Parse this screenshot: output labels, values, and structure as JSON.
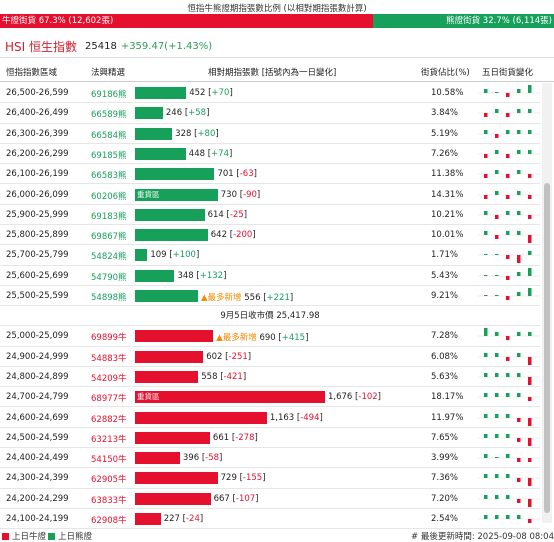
{
  "top_title": "恒指牛熊證期指張數比例 (以相對期指張數計算)",
  "ratio": {
    "bull_label": "牛證街貨 67.3% (12,602張)",
    "bear_label": "熊證街貨 32.7% (6,114張)",
    "bull_fraction": 0.673,
    "bull_color": "#e5102e",
    "bear_color": "#17a05a"
  },
  "index": {
    "name": "HSI 恒生指數",
    "value": "25418",
    "change": "+359.47(+1.43%)"
  },
  "columns": {
    "range": "恒指指數區域",
    "code": "法興精選",
    "qty": "相對期指張數 [括號內為一日變化]",
    "pct": "街貨佔比(%)",
    "spark": "五日街貨變化"
  },
  "heavy_label": "重貨區",
  "new_label": "最多新增",
  "bear_rows": [
    {
      "range": "26,500-26,599",
      "code": "69186熊",
      "qty": 452,
      "chg": "+70",
      "pct": "10.58%",
      "heavy": false,
      "new": false,
      "spark": [
        1,
        0,
        -1,
        1,
        2
      ]
    },
    {
      "range": "26,400-26,499",
      "code": "66589熊",
      "qty": 246,
      "chg": "+58",
      "pct": "3.84%",
      "heavy": false,
      "new": false,
      "spark": [
        -1,
        1,
        -1,
        1,
        1
      ]
    },
    {
      "range": "26,300-26,399",
      "code": "66584熊",
      "qty": 328,
      "chg": "+80",
      "pct": "5.19%",
      "heavy": false,
      "new": false,
      "spark": [
        1,
        -1,
        1,
        1,
        1
      ]
    },
    {
      "range": "26,200-26,299",
      "code": "69185熊",
      "qty": 448,
      "chg": "+74",
      "pct": "7.26%",
      "heavy": false,
      "new": false,
      "spark": [
        -1,
        1,
        -1,
        1,
        1
      ]
    },
    {
      "range": "26,100-26,199",
      "code": "66583熊",
      "qty": 701,
      "chg": "-63",
      "pct": "11.38%",
      "heavy": false,
      "new": false,
      "spark": [
        -1,
        1,
        -1,
        1,
        -1
      ]
    },
    {
      "range": "26,000-26,099",
      "code": "60206熊",
      "qty": 730,
      "chg": "-90",
      "pct": "14.31%",
      "heavy": true,
      "new": false,
      "spark": [
        -1,
        1,
        -1,
        1,
        -1
      ]
    },
    {
      "range": "25,900-25,999",
      "code": "69183熊",
      "qty": 614,
      "chg": "-25",
      "pct": "10.21%",
      "heavy": false,
      "new": false,
      "spark": [
        1,
        -1,
        1,
        1,
        -1
      ]
    },
    {
      "range": "25,800-25,899",
      "code": "69867熊",
      "qty": 642,
      "chg": "-200",
      "pct": "10.01%",
      "heavy": false,
      "new": false,
      "spark": [
        1,
        -1,
        1,
        1,
        -2
      ]
    },
    {
      "range": "25,700-25,799",
      "code": "54824熊",
      "qty": 109,
      "chg": "+100",
      "pct": "1.71%",
      "heavy": false,
      "new": false,
      "spark": [
        0,
        0,
        -1,
        -2,
        1
      ]
    },
    {
      "range": "25,600-25,699",
      "code": "54790熊",
      "qty": 348,
      "chg": "+132",
      "pct": "5.43%",
      "heavy": false,
      "new": false,
      "spark": [
        0,
        0,
        -1,
        1,
        2
      ]
    },
    {
      "range": "25,500-25,599",
      "code": "54898熊",
      "qty": 556,
      "chg": "+221",
      "pct": "9.21%",
      "heavy": false,
      "new": true,
      "spark": [
        0,
        0,
        -1,
        1,
        2
      ]
    }
  ],
  "close_text": "9月5日收市價 25,417.98",
  "bull_rows": [
    {
      "range": "25,000-25,099",
      "code": "69899牛",
      "qty": 690,
      "chg": "+415",
      "pct": "7.28%",
      "heavy": false,
      "new": true,
      "spark": [
        2,
        1,
        -1,
        1,
        1
      ]
    },
    {
      "range": "24,900-24,999",
      "code": "54883牛",
      "qty": 602,
      "chg": "-251",
      "pct": "6.08%",
      "heavy": false,
      "new": false,
      "spark": [
        1,
        1,
        -1,
        1,
        -2
      ]
    },
    {
      "range": "24,800-24,899",
      "code": "54209牛",
      "qty": 558,
      "chg": "-421",
      "pct": "5.63%",
      "heavy": false,
      "new": false,
      "spark": [
        1,
        1,
        1,
        1,
        -2
      ]
    },
    {
      "range": "24,700-24,799",
      "code": "68977牛",
      "qty": 1676,
      "chg": "-102",
      "pct": "18.17%",
      "heavy": true,
      "new": false,
      "spark": [
        1,
        1,
        1,
        1,
        -1
      ]
    },
    {
      "range": "24,600-24,699",
      "code": "62882牛",
      "qty": 1163,
      "chg": "-494",
      "pct": "11.97%",
      "heavy": false,
      "new": false,
      "spark": [
        1,
        1,
        1,
        -1,
        -2
      ]
    },
    {
      "range": "24,500-24,599",
      "code": "63213牛",
      "qty": 661,
      "chg": "-278",
      "pct": "7.65%",
      "heavy": false,
      "new": false,
      "spark": [
        1,
        1,
        1,
        -1,
        -2
      ]
    },
    {
      "range": "24,400-24,499",
      "code": "54150牛",
      "qty": 396,
      "chg": "-58",
      "pct": "3.99%",
      "heavy": false,
      "new": false,
      "spark": [
        1,
        0,
        1,
        -1,
        -1
      ]
    },
    {
      "range": "24,300-24,399",
      "code": "62905牛",
      "qty": 729,
      "chg": "-155",
      "pct": "7.36%",
      "heavy": false,
      "new": false,
      "spark": [
        1,
        1,
        1,
        -1,
        -2
      ]
    },
    {
      "range": "24,200-24,299",
      "code": "63833牛",
      "qty": 667,
      "chg": "-107",
      "pct": "7.20%",
      "heavy": false,
      "new": false,
      "spark": [
        1,
        1,
        1,
        -1,
        -2
      ]
    },
    {
      "range": "24,100-24,199",
      "code": "62908牛",
      "qty": 227,
      "chg": "-24",
      "pct": "2.54%",
      "heavy": false,
      "new": false,
      "spark": [
        1,
        1,
        1,
        1,
        -1
      ]
    }
  ],
  "footer": {
    "bull_legend": "上日牛證",
    "bear_legend": "上日熊證",
    "updated": "# 最後更新時間: 2025-09-08 08:04"
  }
}
